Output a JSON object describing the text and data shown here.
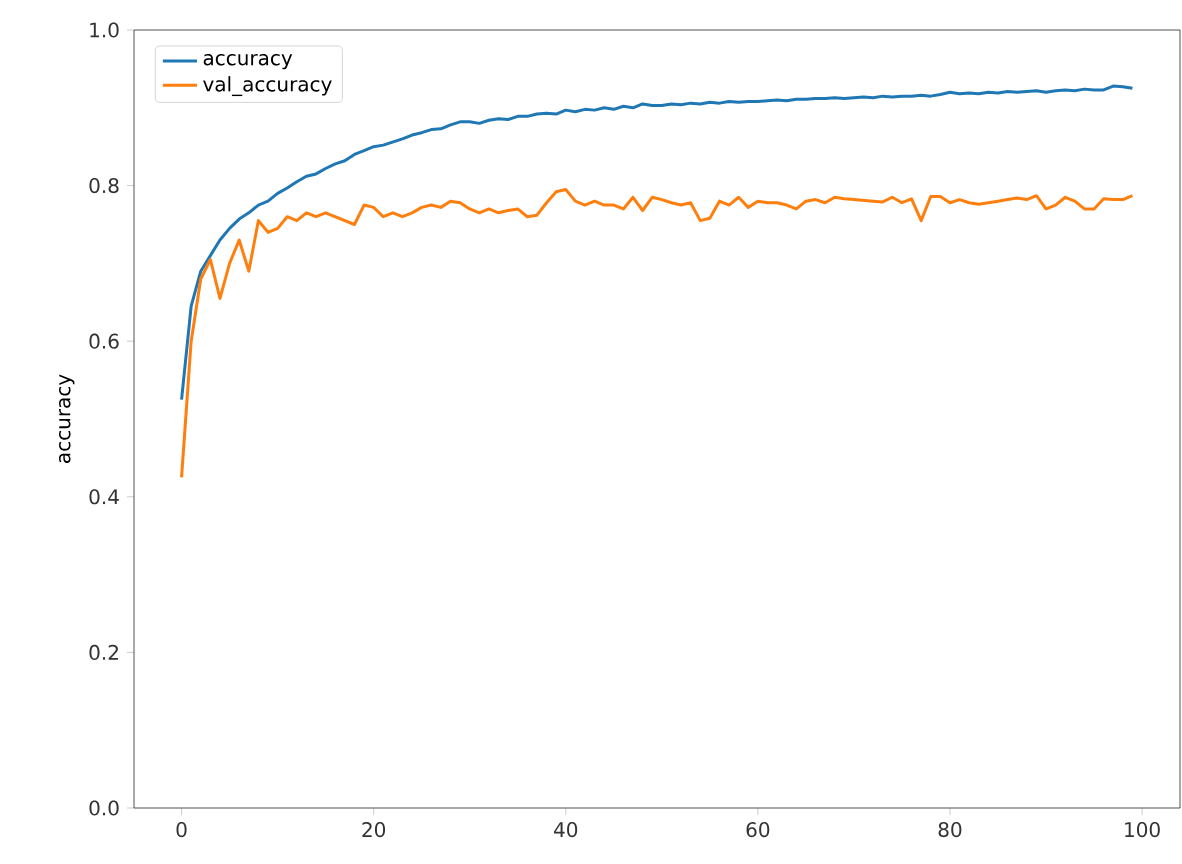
{
  "chart_data": {
    "type": "line",
    "ylabel": "accuracy",
    "x": [
      0,
      1,
      2,
      3,
      4,
      5,
      6,
      7,
      8,
      9,
      10,
      11,
      12,
      13,
      14,
      15,
      16,
      17,
      18,
      19,
      20,
      21,
      22,
      23,
      24,
      25,
      26,
      27,
      28,
      29,
      30,
      31,
      32,
      33,
      34,
      35,
      36,
      37,
      38,
      39,
      40,
      41,
      42,
      43,
      44,
      45,
      46,
      47,
      48,
      49,
      50,
      51,
      52,
      53,
      54,
      55,
      56,
      57,
      58,
      59,
      60,
      61,
      62,
      63,
      64,
      65,
      66,
      67,
      68,
      69,
      70,
      71,
      72,
      73,
      74,
      75,
      76,
      77,
      78,
      79,
      80,
      81,
      82,
      83,
      84,
      85,
      86,
      87,
      88,
      89,
      90,
      91,
      92,
      93,
      94,
      95,
      96,
      97,
      98,
      99
    ],
    "xlim": [
      -4.95,
      103.95
    ],
    "ylim": [
      0,
      1
    ],
    "xticks": [
      0,
      20,
      40,
      60,
      80,
      100
    ],
    "yticks": [
      {
        "value": 0,
        "label": "0.0"
      },
      {
        "value": 0.2,
        "label": "0.2"
      },
      {
        "value": 0.4,
        "label": "0.4"
      },
      {
        "value": 0.6,
        "label": "0.6"
      },
      {
        "value": 0.8,
        "label": "0.8"
      },
      {
        "value": 1,
        "label": "1.0"
      }
    ],
    "legend": "top left",
    "grid": false,
    "marker": "none",
    "line_style": "solid",
    "series": [
      {
        "name": "accuracy",
        "color": "#1f77b4",
        "values": [
          0.525,
          0.645,
          0.69,
          0.71,
          0.73,
          0.745,
          0.757,
          0.765,
          0.775,
          0.78,
          0.79,
          0.797,
          0.805,
          0.812,
          0.815,
          0.822,
          0.828,
          0.832,
          0.84,
          0.845,
          0.85,
          0.852,
          0.856,
          0.86,
          0.865,
          0.868,
          0.872,
          0.873,
          0.878,
          0.882,
          0.882,
          0.88,
          0.884,
          0.886,
          0.885,
          0.889,
          0.889,
          0.892,
          0.893,
          0.892,
          0.897,
          0.895,
          0.898,
          0.897,
          0.9,
          0.898,
          0.902,
          0.9,
          0.905,
          0.903,
          0.903,
          0.905,
          0.904,
          0.906,
          0.905,
          0.907,
          0.906,
          0.908,
          0.907,
          0.908,
          0.908,
          0.909,
          0.91,
          0.909,
          0.911,
          0.911,
          0.912,
          0.912,
          0.913,
          0.912,
          0.913,
          0.914,
          0.913,
          0.915,
          0.914,
          0.915,
          0.915,
          0.916,
          0.915,
          0.917,
          0.92,
          0.918,
          0.919,
          0.918,
          0.92,
          0.919,
          0.921,
          0.92,
          0.921,
          0.922,
          0.92,
          0.922,
          0.923,
          0.922,
          0.924,
          0.923,
          0.923,
          0.928,
          0.927,
          0.925
        ]
      },
      {
        "name": "val_accuracy",
        "color": "#ff7f0e",
        "values": [
          0.425,
          0.6,
          0.68,
          0.705,
          0.655,
          0.7,
          0.73,
          0.69,
          0.755,
          0.74,
          0.745,
          0.76,
          0.755,
          0.765,
          0.76,
          0.765,
          0.76,
          0.755,
          0.75,
          0.775,
          0.772,
          0.76,
          0.765,
          0.76,
          0.765,
          0.772,
          0.775,
          0.772,
          0.78,
          0.778,
          0.77,
          0.765,
          0.77,
          0.765,
          0.768,
          0.77,
          0.76,
          0.762,
          0.778,
          0.792,
          0.795,
          0.78,
          0.775,
          0.78,
          0.775,
          0.775,
          0.77,
          0.785,
          0.768,
          0.785,
          0.782,
          0.778,
          0.775,
          0.778,
          0.755,
          0.758,
          0.78,
          0.775,
          0.785,
          0.772,
          0.78,
          0.778,
          0.778,
          0.775,
          0.77,
          0.78,
          0.782,
          0.778,
          0.785,
          0.783,
          0.782,
          0.781,
          0.78,
          0.779,
          0.785,
          0.778,
          0.783,
          0.755,
          0.786,
          0.786,
          0.778,
          0.782,
          0.778,
          0.776,
          0.778,
          0.78,
          0.782,
          0.784,
          0.782,
          0.787,
          0.77,
          0.775,
          0.785,
          0.78,
          0.77,
          0.77,
          0.783,
          0.782,
          0.782,
          0.787
        ]
      }
    ]
  }
}
